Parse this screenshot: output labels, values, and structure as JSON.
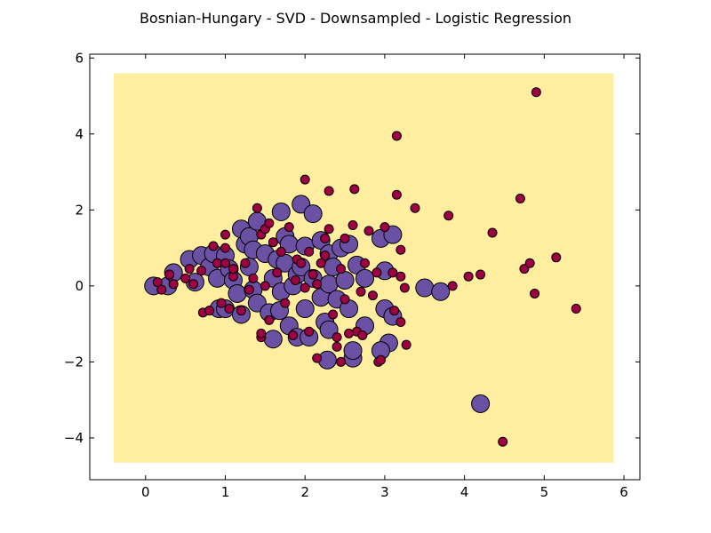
{
  "chart_data": {
    "type": "scatter",
    "title": "Bosnian-Hungary - SVD - Downsampled - Logistic Regression",
    "xlabel": "",
    "ylabel": "",
    "xlim": [
      -0.7,
      6.2
    ],
    "ylim": [
      -5.1,
      6.1
    ],
    "x_ticks": [
      0,
      1,
      2,
      3,
      4,
      5,
      6
    ],
    "y_ticks": [
      -4,
      -2,
      0,
      2,
      4,
      6
    ],
    "y_tick_labels": [
      "−4",
      "−2",
      "0",
      "2",
      "4",
      "6"
    ],
    "grid": false,
    "decision_region": {
      "x_range": [
        -0.4,
        5.87
      ],
      "y_range": [
        -4.65,
        5.6
      ],
      "color": "#ffeda0"
    },
    "series_styles": [
      {
        "color": "#6a51a3",
        "size": "large"
      },
      {
        "color": "#9e0142",
        "size": "small"
      }
    ],
    "series": [
      {
        "points": [
          [
            0.1,
            0.0
          ],
          [
            0.28,
            0.0
          ],
          [
            0.35,
            0.35
          ],
          [
            0.55,
            0.7
          ],
          [
            0.62,
            0.1
          ],
          [
            0.7,
            0.8
          ],
          [
            0.8,
            0.5
          ],
          [
            0.85,
            0.85
          ],
          [
            0.9,
            0.2
          ],
          [
            0.92,
            -0.6
          ],
          [
            1.0,
            0.8
          ],
          [
            1.0,
            -0.6
          ],
          [
            1.05,
            0.45
          ],
          [
            1.1,
            0.15
          ],
          [
            1.15,
            -0.2
          ],
          [
            1.2,
            1.5
          ],
          [
            1.2,
            -0.75
          ],
          [
            1.25,
            1.1
          ],
          [
            1.3,
            1.3
          ],
          [
            1.3,
            0.5
          ],
          [
            1.35,
            -0.1
          ],
          [
            1.35,
            0.95
          ],
          [
            1.4,
            1.7
          ],
          [
            1.4,
            -0.45
          ],
          [
            1.5,
            0.85
          ],
          [
            1.55,
            -0.7
          ],
          [
            1.6,
            0.2
          ],
          [
            1.6,
            -1.4
          ],
          [
            1.65,
            0.7
          ],
          [
            1.68,
            -0.65
          ],
          [
            1.7,
            1.95
          ],
          [
            1.7,
            -0.15
          ],
          [
            1.75,
            1.3
          ],
          [
            1.75,
            0.6
          ],
          [
            1.8,
            1.1
          ],
          [
            1.8,
            -1.05
          ],
          [
            1.85,
            0.0
          ],
          [
            1.9,
            0.3
          ],
          [
            1.9,
            -1.35
          ],
          [
            1.95,
            2.15
          ],
          [
            1.95,
            0.5
          ],
          [
            2.0,
            1.05
          ],
          [
            2.0,
            -0.6
          ],
          [
            2.05,
            -1.35
          ],
          [
            2.1,
            1.9
          ],
          [
            2.1,
            0.2
          ],
          [
            2.2,
            1.2
          ],
          [
            2.2,
            -0.3
          ],
          [
            2.25,
            -0.95
          ],
          [
            2.3,
            0.85
          ],
          [
            2.3,
            0.05
          ],
          [
            2.3,
            -1.15
          ],
          [
            2.35,
            0.5
          ],
          [
            2.4,
            -0.35
          ],
          [
            2.45,
            1.0
          ],
          [
            2.5,
            0.15
          ],
          [
            2.55,
            1.1
          ],
          [
            2.55,
            -0.6
          ],
          [
            2.6,
            -1.9
          ],
          [
            2.65,
            0.55
          ],
          [
            2.75,
            0.2
          ],
          [
            2.75,
            -1.05
          ],
          [
            2.28,
            -1.95
          ],
          [
            2.95,
            1.25
          ],
          [
            3.0,
            0.4
          ],
          [
            3.0,
            -0.6
          ],
          [
            3.05,
            -1.5
          ],
          [
            3.1,
            1.35
          ],
          [
            3.1,
            -0.8
          ],
          [
            2.6,
            -1.7
          ],
          [
            2.95,
            -1.7
          ],
          [
            3.5,
            -0.05
          ],
          [
            3.7,
            -0.15
          ],
          [
            4.2,
            -3.1
          ]
        ]
      },
      {
        "points": [
          [
            0.15,
            0.1
          ],
          [
            0.2,
            -0.1
          ],
          [
            0.3,
            0.3
          ],
          [
            0.35,
            0.05
          ],
          [
            0.5,
            0.2
          ],
          [
            0.55,
            0.45
          ],
          [
            0.6,
            0.05
          ],
          [
            0.7,
            0.4
          ],
          [
            0.72,
            -0.7
          ],
          [
            0.8,
            -0.65
          ],
          [
            0.85,
            1.05
          ],
          [
            0.9,
            0.6
          ],
          [
            0.95,
            -0.45
          ],
          [
            1.0,
            1.0
          ],
          [
            1.0,
            1.35
          ],
          [
            1.05,
            -0.6
          ],
          [
            1.1,
            0.25
          ],
          [
            1.2,
            -0.65
          ],
          [
            1.25,
            0.6
          ],
          [
            1.3,
            -0.1
          ],
          [
            1.35,
            0.2
          ],
          [
            1.4,
            2.05
          ],
          [
            1.45,
            1.35
          ],
          [
            1.45,
            -1.35
          ],
          [
            1.5,
            1.5
          ],
          [
            1.5,
            0.0
          ],
          [
            1.55,
            1.65
          ],
          [
            1.55,
            -0.9
          ],
          [
            1.6,
            1.15
          ],
          [
            1.7,
            0.9
          ],
          [
            1.75,
            -0.45
          ],
          [
            1.8,
            1.55
          ],
          [
            1.85,
            -1.3
          ],
          [
            1.9,
            0.7
          ],
          [
            2.0,
            2.8
          ],
          [
            2.05,
            0.9
          ],
          [
            2.05,
            -1.2
          ],
          [
            2.1,
            0.3
          ],
          [
            2.15,
            -1.9
          ],
          [
            2.2,
            0.6
          ],
          [
            2.25,
            1.25
          ],
          [
            2.3,
            2.5
          ],
          [
            2.3,
            1.5
          ],
          [
            2.35,
            -0.75
          ],
          [
            2.4,
            -1.35
          ],
          [
            2.4,
            -1.6
          ],
          [
            2.45,
            -2.0
          ],
          [
            2.5,
            1.25
          ],
          [
            2.6,
            1.6
          ],
          [
            2.62,
            2.55
          ],
          [
            2.65,
            -1.2
          ],
          [
            2.7,
            -0.15
          ],
          [
            2.75,
            0.6
          ],
          [
            2.8,
            1.45
          ],
          [
            2.85,
            -0.25
          ],
          [
            2.9,
            0.35
          ],
          [
            2.92,
            -2.0
          ],
          [
            2.95,
            -1.95
          ],
          [
            3.0,
            1.55
          ],
          [
            3.1,
            0.35
          ],
          [
            3.12,
            -0.65
          ],
          [
            3.15,
            3.95
          ],
          [
            3.15,
            2.4
          ],
          [
            3.2,
            0.95
          ],
          [
            3.2,
            0.25
          ],
          [
            3.2,
            -0.95
          ],
          [
            3.25,
            -0.05
          ],
          [
            3.27,
            -1.55
          ],
          [
            3.38,
            2.05
          ],
          [
            3.8,
            1.85
          ],
          [
            3.85,
            0.0
          ],
          [
            4.05,
            0.25
          ],
          [
            4.2,
            0.3
          ],
          [
            4.35,
            1.4
          ],
          [
            4.48,
            -4.1
          ],
          [
            4.7,
            2.3
          ],
          [
            4.75,
            0.45
          ],
          [
            4.82,
            0.6
          ],
          [
            4.88,
            -0.2
          ],
          [
            4.9,
            5.1
          ],
          [
            5.15,
            0.75
          ],
          [
            5.4,
            -0.6
          ],
          [
            1.1,
            0.45
          ],
          [
            1.0,
            0.6
          ],
          [
            2.0,
            -0.05
          ],
          [
            2.15,
            0.05
          ],
          [
            1.95,
            0.6
          ],
          [
            2.5,
            -0.35
          ],
          [
            2.25,
            0.8
          ],
          [
            2.72,
            -1.3
          ],
          [
            2.55,
            -1.25
          ],
          [
            2.45,
            0.45
          ],
          [
            1.65,
            0.35
          ],
          [
            1.88,
            0.15
          ],
          [
            1.45,
            -1.25
          ]
        ]
      }
    ]
  }
}
